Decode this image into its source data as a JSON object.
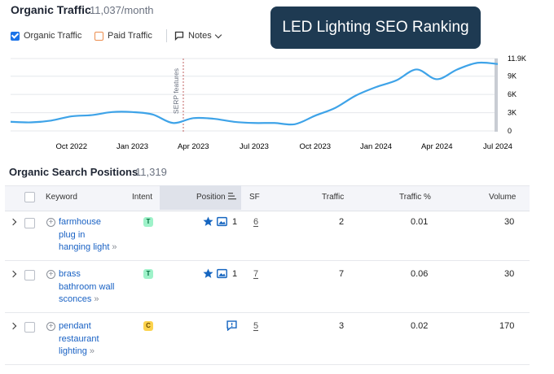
{
  "header": {
    "title": "Organic Traffic",
    "subtitle": "11,037/month",
    "banner": "LED Lighting SEO Ranking"
  },
  "filters": {
    "organic_label": "Organic Traffic",
    "paid_label": "Paid Traffic",
    "notes_label": "Notes",
    "colors": {
      "organic": "#1a73e8",
      "paid": "#ec8d4e"
    }
  },
  "chart_data": {
    "type": "line",
    "x": [
      "2022-07",
      "2022-08",
      "2022-09",
      "2022-10",
      "2022-11",
      "2022-12",
      "2023-01",
      "2023-02",
      "2023-03",
      "2023-04",
      "2023-05",
      "2023-06",
      "2023-07",
      "2023-08",
      "2023-09",
      "2023-10",
      "2023-11",
      "2023-12",
      "2024-01",
      "2024-02",
      "2024-03",
      "2024-04",
      "2024-05",
      "2024-06",
      "2024-07"
    ],
    "series": [
      {
        "values": [
          1500,
          1400,
          1700,
          2400,
          2600,
          3100,
          3100,
          2700,
          1300,
          2100,
          2000,
          1500,
          1300,
          1300,
          1100,
          2500,
          3800,
          5800,
          7200,
          8300,
          10100,
          8500,
          10100,
          11200,
          11000
        ],
        "color": "#3ea3e8"
      }
    ],
    "xticks": [
      "Oct 2022",
      "Jan 2023",
      "Apr 2023",
      "Jul 2023",
      "Oct 2023",
      "Jan 2024",
      "Apr 2024",
      "Jul 2024"
    ],
    "yticks": [
      "0",
      "3K",
      "6K",
      "9K",
      "11.9K"
    ],
    "ylim": [
      0,
      11900
    ],
    "annotation": "SERP features",
    "grid": true
  },
  "positions": {
    "title": "Organic Search Positions",
    "count": "11,319",
    "columns": [
      "Keyword",
      "Intent",
      "Position",
      "SF",
      "Traffic",
      "Traffic %",
      "Volume"
    ],
    "rows": [
      {
        "keyword": [
          "farmhouse",
          "plug in",
          "hanging light"
        ],
        "intent": "T",
        "position": "1",
        "pos_icons": [
          "star",
          "image"
        ],
        "sf": "6",
        "traffic": "2",
        "traffic_pct": "0.01",
        "volume": "30"
      },
      {
        "keyword": [
          "brass",
          "bathroom wall",
          "sconces"
        ],
        "intent": "T",
        "position": "1",
        "pos_icons": [
          "star",
          "image"
        ],
        "sf": "7",
        "traffic": "7",
        "traffic_pct": "0.06",
        "volume": "30"
      },
      {
        "keyword": [
          "pendant",
          "restaurant",
          "lighting"
        ],
        "intent": "C",
        "position": "",
        "pos_icons": [
          "chat"
        ],
        "sf": "5",
        "traffic": "3",
        "traffic_pct": "0.02",
        "volume": "170"
      }
    ]
  }
}
